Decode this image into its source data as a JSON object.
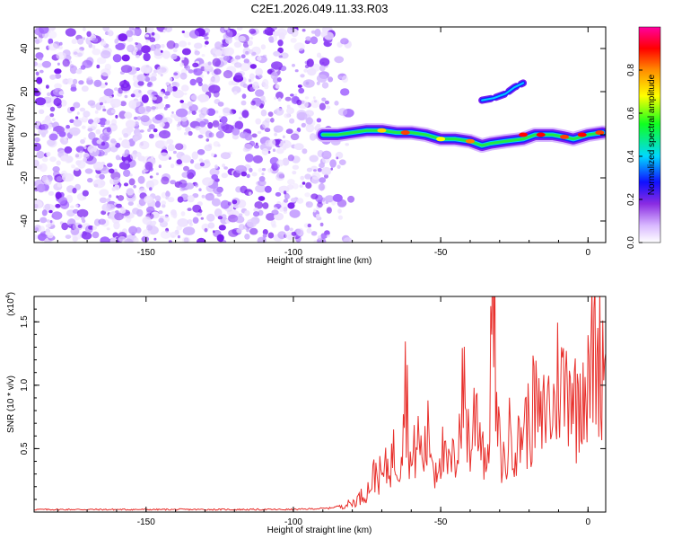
{
  "title": "C2E1.2026.049.11.33.R03",
  "colors": {
    "purple": "#7a1ff0",
    "line": "#e8302c",
    "axis": "#000000"
  },
  "chart_data": [
    {
      "type": "heatmap",
      "title": "C2E1.2026.049.11.33.R03",
      "xlabel": "Height of straight line (km)",
      "ylabel": "Frequency (Hz)",
      "xlim": [
        -188,
        6
      ],
      "ylim": [
        -50,
        50
      ],
      "xticks": [
        -150,
        -100,
        -50,
        0
      ],
      "xtick_labels": [
        "-150",
        "-100",
        "-50",
        "0"
      ],
      "yticks": [
        -40,
        -20,
        0,
        20,
        40
      ],
      "ytick_labels": [
        "-40",
        "-20",
        "0",
        "20",
        "40"
      ],
      "noise_region_km": [
        -188,
        -88
      ],
      "ridge": {
        "x": [
          -90,
          -85,
          -80,
          -75,
          -70,
          -65,
          -60,
          -55,
          -50,
          -45,
          -40,
          -36,
          -33,
          -28,
          -22,
          -18,
          -12,
          -8,
          -5,
          0,
          5
        ],
        "y": [
          0,
          0,
          1,
          2,
          2,
          1,
          1,
          0,
          -2,
          -2,
          -3,
          -5,
          -4,
          -3,
          -2,
          0,
          0,
          -1,
          -2,
          0,
          1
        ]
      },
      "branch": {
        "x": [
          -36,
          -32,
          -28,
          -25,
          -22
        ],
        "y": [
          16,
          17,
          19,
          22,
          24
        ]
      },
      "colorbar": {
        "label": "Normalized spectral amplitude",
        "ticks": [
          0.0,
          0.2,
          0.4,
          0.6,
          0.8
        ],
        "tick_labels": [
          "0.0",
          "0.2",
          "0.4",
          "0.6",
          "0.8"
        ],
        "range": [
          0,
          1
        ]
      }
    },
    {
      "type": "line",
      "xlabel": "Height of straight line (km)",
      "ylabel": "SNR (10 * v/v)",
      "scale_label": "(x10",
      "scale_exp": "4",
      "scale_close": ")",
      "xlim": [
        -188,
        6
      ],
      "ylim": [
        0,
        1.7
      ],
      "xticks": [
        -150,
        -100,
        -50,
        0
      ],
      "xtick_labels": [
        "-150",
        "-100",
        "-50",
        "0"
      ],
      "yticks": [
        0.5,
        1.0,
        1.5
      ],
      "ytick_labels": [
        "0.5",
        "1.0",
        "1.5"
      ],
      "series": [
        {
          "name": "SNR",
          "x": [
            -188,
            -150,
            -100,
            -88,
            -80,
            -75,
            -72,
            -70,
            -66,
            -64,
            -62,
            -60,
            -58,
            -56,
            -54,
            -52,
            -50,
            -48,
            -45,
            -42,
            -40,
            -38,
            -36,
            -34,
            -33,
            -32,
            -31,
            -30,
            -28,
            -26,
            -24,
            -22,
            -20,
            -18,
            -16,
            -14,
            -12,
            -10,
            -8,
            -6,
            -4,
            -2,
            0,
            2,
            4,
            6
          ],
          "y": [
            0.02,
            0.02,
            0.02,
            0.03,
            0.07,
            0.16,
            0.32,
            0.27,
            0.45,
            0.38,
            1.07,
            0.32,
            0.59,
            0.42,
            0.62,
            0.32,
            0.52,
            0.34,
            0.42,
            1.0,
            0.45,
            0.88,
            0.58,
            0.35,
            1.3,
            1.7,
            0.7,
            0.5,
            0.35,
            0.72,
            0.48,
            0.72,
            0.68,
            0.86,
            0.65,
            0.88,
            0.75,
            1.1,
            0.95,
            1.15,
            0.8,
            1.12,
            0.95,
            1.3,
            1.2,
            1.25
          ]
        }
      ]
    }
  ]
}
